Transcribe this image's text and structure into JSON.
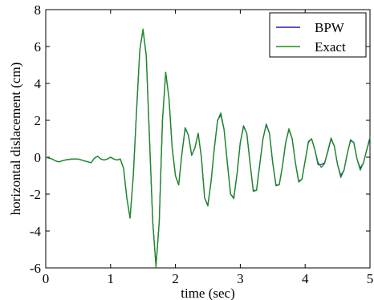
{
  "chart_data": {
    "type": "line",
    "title": "",
    "xlabel": "time (sec)",
    "ylabel": "horizontal dislacement (cm)",
    "xlim": [
      0,
      5
    ],
    "ylim": [
      -6,
      8
    ],
    "xticks": [
      0,
      1,
      2,
      3,
      4,
      5
    ],
    "yticks": [
      -6,
      -4,
      -2,
      0,
      2,
      4,
      6,
      8
    ],
    "grid": false,
    "legend_position": "top-right",
    "series": [
      {
        "name": "BPW",
        "color": "#1f1fbf",
        "x": [
          0,
          0.05,
          0.1,
          0.15,
          0.2,
          0.3,
          0.4,
          0.5,
          0.6,
          0.7,
          0.75,
          0.8,
          0.85,
          0.9,
          0.95,
          1.0,
          1.05,
          1.1,
          1.15,
          1.2,
          1.25,
          1.3,
          1.35,
          1.4,
          1.45,
          1.5,
          1.55,
          1.6,
          1.65,
          1.7,
          1.75,
          1.8,
          1.85,
          1.9,
          1.95,
          2.0,
          2.05,
          2.1,
          2.15,
          2.2,
          2.25,
          2.3,
          2.35,
          2.4,
          2.45,
          2.5,
          2.55,
          2.6,
          2.65,
          2.7,
          2.75,
          2.8,
          2.85,
          2.9,
          2.95,
          3.0,
          3.05,
          3.1,
          3.15,
          3.2,
          3.25,
          3.3,
          3.35,
          3.4,
          3.45,
          3.5,
          3.55,
          3.6,
          3.65,
          3.7,
          3.75,
          3.8,
          3.85,
          3.9,
          3.95,
          4.0,
          4.05,
          4.1,
          4.15,
          4.2,
          4.25,
          4.3,
          4.35,
          4.4,
          4.45,
          4.5,
          4.55,
          4.6,
          4.65,
          4.7,
          4.75,
          4.8,
          4.85,
          4.9,
          4.95,
          5.0
        ],
        "y": [
          0,
          -0.05,
          -0.1,
          -0.2,
          -0.25,
          -0.15,
          -0.1,
          -0.1,
          -0.2,
          -0.3,
          -0.05,
          0.05,
          -0.1,
          -0.15,
          -0.1,
          0.0,
          -0.1,
          -0.15,
          -0.1,
          -0.6,
          -2.2,
          -3.3,
          -1.0,
          2.5,
          5.8,
          6.9,
          5.5,
          1.0,
          -3.5,
          -5.9,
          -3.5,
          2.0,
          4.6,
          3.2,
          0.5,
          -1.0,
          -1.5,
          0.2,
          1.6,
          1.2,
          0.1,
          0.5,
          1.3,
          0.0,
          -2.2,
          -2.6,
          -1.3,
          0.5,
          2.0,
          2.3,
          1.5,
          -0.3,
          -2.0,
          -2.2,
          -0.9,
          0.8,
          1.7,
          1.3,
          -0.3,
          -1.8,
          -1.8,
          -0.4,
          1.0,
          1.8,
          1.3,
          -0.3,
          -1.5,
          -1.5,
          -0.5,
          0.8,
          1.5,
          1.0,
          -0.3,
          -1.3,
          -1.2,
          -0.2,
          0.8,
          1.0,
          0.4,
          -0.4,
          -0.4,
          -0.3,
          0.3,
          1.0,
          0.6,
          -0.4,
          -1.0,
          -0.7,
          0.2,
          0.9,
          0.8,
          -0.1,
          -0.6,
          -0.3,
          0.4,
          1.0
        ],
        "y_end": 0.5
      },
      {
        "name": "Exact",
        "color": "#1a8f1a",
        "x": [
          0,
          0.05,
          0.1,
          0.15,
          0.2,
          0.3,
          0.4,
          0.5,
          0.6,
          0.7,
          0.75,
          0.8,
          0.85,
          0.9,
          0.95,
          1.0,
          1.05,
          1.1,
          1.15,
          1.2,
          1.25,
          1.3,
          1.35,
          1.4,
          1.45,
          1.5,
          1.55,
          1.6,
          1.65,
          1.7,
          1.75,
          1.8,
          1.85,
          1.9,
          1.95,
          2.0,
          2.05,
          2.1,
          2.15,
          2.2,
          2.25,
          2.3,
          2.35,
          2.4,
          2.45,
          2.5,
          2.55,
          2.6,
          2.65,
          2.7,
          2.75,
          2.8,
          2.85,
          2.9,
          2.95,
          3.0,
          3.05,
          3.1,
          3.15,
          3.2,
          3.25,
          3.3,
          3.35,
          3.4,
          3.45,
          3.5,
          3.55,
          3.6,
          3.65,
          3.7,
          3.75,
          3.8,
          3.85,
          3.9,
          3.95,
          4.0,
          4.05,
          4.1,
          4.15,
          4.2,
          4.25,
          4.3,
          4.35,
          4.4,
          4.45,
          4.5,
          4.55,
          4.6,
          4.65,
          4.7,
          4.75,
          4.8,
          4.85,
          4.9,
          4.95,
          5.0
        ],
        "y": [
          0,
          -0.05,
          -0.1,
          -0.2,
          -0.25,
          -0.15,
          -0.1,
          -0.1,
          -0.2,
          -0.3,
          -0.05,
          0.05,
          -0.1,
          -0.15,
          -0.1,
          0.0,
          -0.1,
          -0.15,
          -0.1,
          -0.6,
          -2.2,
          -3.3,
          -1.0,
          2.5,
          5.8,
          6.95,
          5.5,
          1.0,
          -3.5,
          -5.95,
          -3.5,
          2.0,
          4.6,
          3.2,
          0.5,
          -1.0,
          -1.5,
          0.2,
          1.55,
          1.2,
          0.1,
          0.5,
          1.3,
          0.0,
          -2.2,
          -2.65,
          -1.3,
          0.5,
          2.0,
          2.4,
          1.5,
          -0.3,
          -2.0,
          -2.25,
          -0.9,
          0.8,
          1.65,
          1.3,
          -0.3,
          -1.85,
          -1.8,
          -0.4,
          1.0,
          1.75,
          1.3,
          -0.3,
          -1.55,
          -1.5,
          -0.5,
          0.8,
          1.55,
          1.0,
          -0.3,
          -1.35,
          -1.2,
          -0.2,
          0.85,
          1.0,
          0.4,
          -0.3,
          -0.55,
          -0.35,
          0.35,
          1.05,
          0.6,
          -0.4,
          -1.1,
          -0.7,
          0.2,
          0.95,
          0.8,
          -0.1,
          -0.7,
          -0.3,
          0.4,
          1.1
        ],
        "y_end": 0.5
      }
    ]
  },
  "legend": {
    "items": [
      {
        "label": "BPW",
        "color": "#1f1fbf"
      },
      {
        "label": "Exact",
        "color": "#1a8f1a"
      }
    ]
  }
}
